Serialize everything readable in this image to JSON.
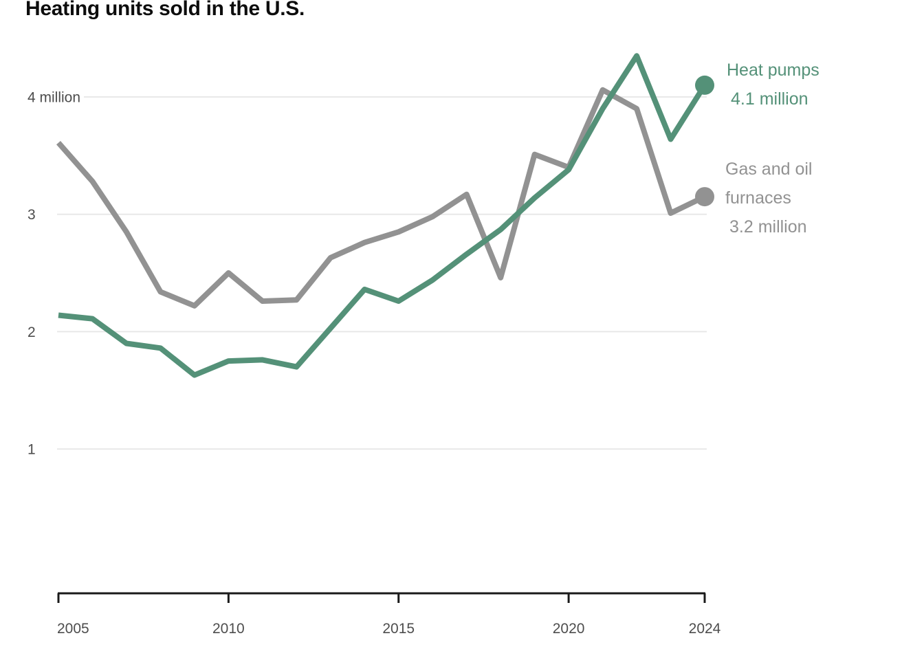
{
  "title": "Heating units sold in the U.S.",
  "chart_data": {
    "type": "line",
    "x": [
      2005,
      2006,
      2007,
      2008,
      2009,
      2010,
      2011,
      2012,
      2013,
      2014,
      2015,
      2016,
      2017,
      2018,
      2019,
      2020,
      2021,
      2022,
      2023,
      2024
    ],
    "series": [
      {
        "name": "Heat pumps",
        "color": "#549178",
        "end_value_label": "4.1 million",
        "values": [
          2.14,
          2.11,
          1.9,
          1.86,
          1.63,
          1.75,
          1.76,
          1.7,
          2.03,
          2.36,
          2.26,
          2.44,
          2.66,
          2.87,
          3.14,
          3.38,
          3.9,
          4.35,
          3.64,
          4.1
        ]
      },
      {
        "name": "Gas and oil furnaces",
        "color": "#929292",
        "end_value_label": "3.2 million",
        "values": [
          3.61,
          3.28,
          2.85,
          2.34,
          2.22,
          2.5,
          2.26,
          2.27,
          2.63,
          2.76,
          2.85,
          2.98,
          3.17,
          2.46,
          3.51,
          3.4,
          4.06,
          3.9,
          3.01,
          3.15
        ]
      }
    ],
    "xticks": [
      {
        "value": 2005,
        "label": "2005"
      },
      {
        "value": 2010,
        "label": "2010"
      },
      {
        "value": 2015,
        "label": "2015"
      },
      {
        "value": 2020,
        "label": "2020"
      },
      {
        "value": 2024,
        "label": "2024"
      }
    ],
    "yticks": [
      {
        "value": 4,
        "label": "4 million"
      },
      {
        "value": 3,
        "label": "3"
      },
      {
        "value": 2,
        "label": "2"
      },
      {
        "value": 1,
        "label": "1"
      }
    ],
    "xlim": [
      2005,
      2024
    ],
    "ylim": [
      0.25,
      4.5
    ],
    "grid": "horizontal-only",
    "legend_position": "right"
  },
  "legend": {
    "heat_pumps": {
      "label": "Heat pumps",
      "value_label": "4.1 million",
      "color": "#549178"
    },
    "furnaces": {
      "label_line1": "Gas and oil",
      "label_line2": "furnaces",
      "value_label": "3.2 million",
      "color": "#929292"
    }
  }
}
